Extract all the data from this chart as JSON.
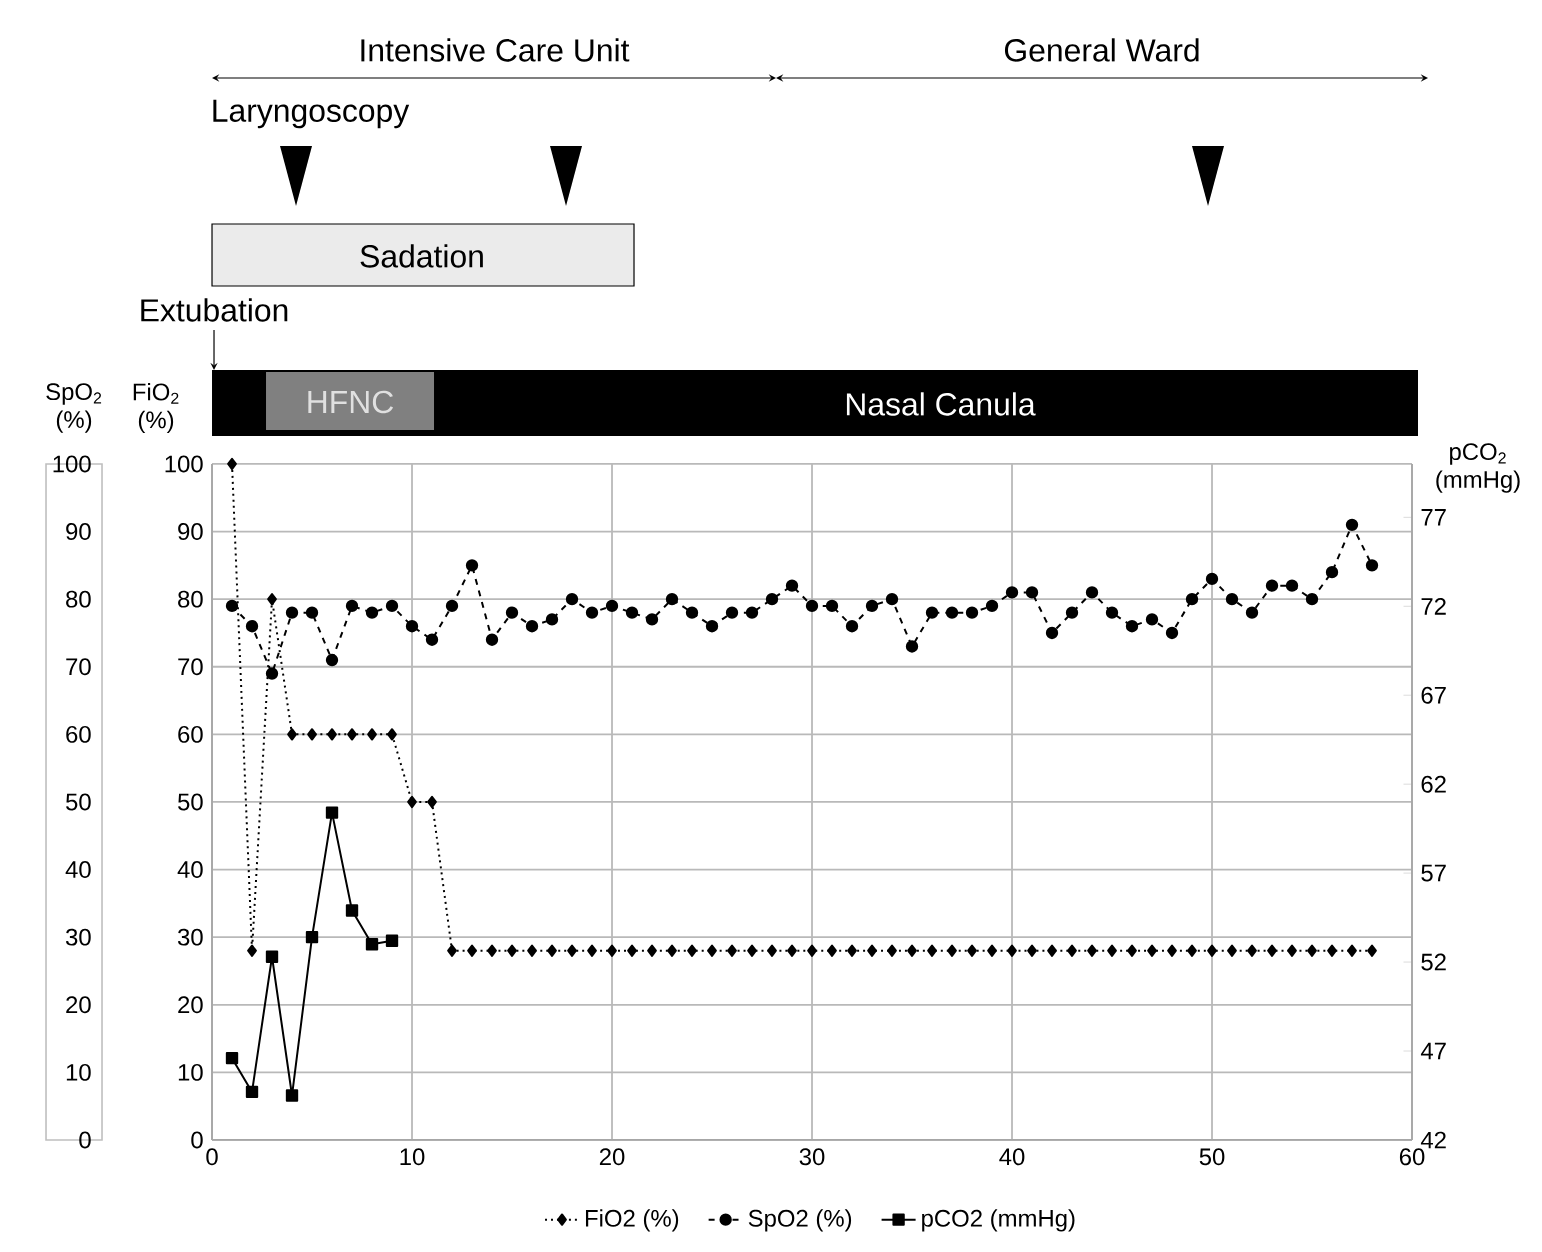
{
  "chart_data": {
    "type": "line",
    "x": [
      1,
      2,
      3,
      4,
      5,
      6,
      7,
      8,
      9,
      10,
      11,
      12,
      13,
      14,
      15,
      16,
      17,
      18,
      19,
      20,
      21,
      22,
      23,
      24,
      25,
      26,
      27,
      28,
      29,
      30,
      31,
      32,
      33,
      34,
      35,
      36,
      37,
      38,
      39,
      40,
      41,
      42,
      43,
      44,
      45,
      46,
      47,
      48,
      49,
      50,
      51,
      52,
      53,
      54,
      55,
      56,
      57,
      58
    ],
    "series": [
      {
        "name": "FiO2 (%)",
        "color": "#000000",
        "marker": "diamond",
        "line_style": "dotted",
        "values": [
          100,
          28,
          80,
          60,
          60,
          60,
          60,
          60,
          60,
          50,
          50,
          28,
          28,
          28,
          28,
          28,
          28,
          28,
          28,
          28,
          28,
          28,
          28,
          28,
          28,
          28,
          28,
          28,
          28,
          28,
          28,
          28,
          28,
          28,
          28,
          28,
          28,
          28,
          28,
          28,
          28,
          28,
          28,
          28,
          28,
          28,
          28,
          28,
          28,
          28,
          28,
          28,
          28,
          28,
          28,
          28,
          28,
          28
        ]
      },
      {
        "name": "SpO2 (%)",
        "color": "#000000",
        "marker": "circle",
        "line_style": "dashed",
        "values": [
          79,
          76,
          69,
          78,
          78,
          71,
          79,
          78,
          79,
          76,
          74,
          79,
          85,
          74,
          78,
          76,
          77,
          80,
          78,
          79,
          78,
          77,
          80,
          78,
          76,
          78,
          78,
          80,
          82,
          79,
          79,
          76,
          79,
          80,
          73,
          78,
          78,
          78,
          79,
          81,
          81,
          75,
          78,
          81,
          78,
          76,
          77,
          75,
          80,
          83,
          80,
          78,
          82,
          82,
          80,
          84,
          91,
          85
        ]
      },
      {
        "name": "pCO2 (mmHg)",
        "color": "#000000",
        "marker": "square",
        "line_style": "solid",
        "axis": "y2",
        "x": [
          1,
          2,
          3,
          4,
          5,
          6,
          7,
          8,
          9
        ],
        "values": [
          46.6,
          44.7,
          52.3,
          44.5,
          53.4,
          60.4,
          54.9,
          53.0,
          53.2
        ]
      }
    ],
    "xlim": [
      0,
      60
    ],
    "xticks": [
      0,
      10,
      20,
      30,
      40,
      50,
      60
    ],
    "ylim": [
      0,
      100
    ],
    "yticks": [
      0,
      10,
      20,
      30,
      40,
      50,
      60,
      70,
      80,
      90,
      100
    ],
    "ylabel": "FiO$_{2}$ (%)",
    "y2lim": [
      42,
      80
    ],
    "y2ticks": [
      42,
      47,
      52,
      57,
      62,
      67,
      72,
      77
    ],
    "y2label": "pCO$_{2}$ (mmHg)",
    "y3lim": [
      0,
      100
    ],
    "y3ticks": [
      0,
      10,
      20,
      30,
      40,
      50,
      60,
      70,
      80,
      90,
      100
    ],
    "y3label": "SpO$_{2}$ (%)",
    "annotations": [
      "Intensive Care Unit",
      "General Ward",
      "Laryngoscopy",
      "Sadation",
      "Extubation",
      "HFNC",
      "Nasal Canula"
    ],
    "grid": true,
    "legend": "bottom"
  }
}
